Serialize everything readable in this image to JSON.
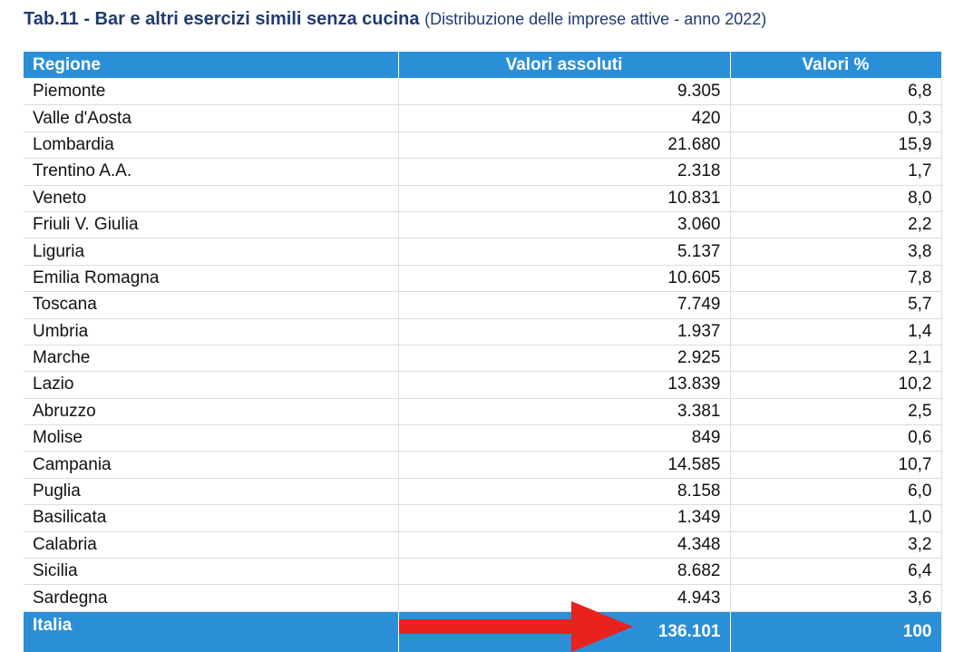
{
  "title": {
    "bold": "Tab.11 - Bar e altri esercizi simili senza cucina",
    "subtitle": "(Distribuzione delle imprese attive - anno 2022)"
  },
  "table": {
    "headers": [
      "Regione",
      "Valori assoluti",
      "Valori %"
    ],
    "rows": [
      {
        "regione": "Piemonte",
        "assoluti": "9.305",
        "percent": "6,8"
      },
      {
        "regione": "Valle d'Aosta",
        "assoluti": "420",
        "percent": "0,3"
      },
      {
        "regione": "Lombardia",
        "assoluti": "21.680",
        "percent": "15,9"
      },
      {
        "regione": "Trentino A.A.",
        "assoluti": "2.318",
        "percent": "1,7"
      },
      {
        "regione": "Veneto",
        "assoluti": "10.831",
        "percent": "8,0"
      },
      {
        "regione": "Friuli V. Giulia",
        "assoluti": "3.060",
        "percent": "2,2"
      },
      {
        "regione": "Liguria",
        "assoluti": "5.137",
        "percent": "3,8"
      },
      {
        "regione": "Emilia Romagna",
        "assoluti": "10.605",
        "percent": "7,8"
      },
      {
        "regione": "Toscana",
        "assoluti": "7.749",
        "percent": "5,7"
      },
      {
        "regione": "Umbria",
        "assoluti": "1.937",
        "percent": "1,4"
      },
      {
        "regione": "Marche",
        "assoluti": "2.925",
        "percent": "2,1"
      },
      {
        "regione": "Lazio",
        "assoluti": "13.839",
        "percent": "10,2"
      },
      {
        "regione": "Abruzzo",
        "assoluti": "3.381",
        "percent": "2,5"
      },
      {
        "regione": "Molise",
        "assoluti": "849",
        "percent": "0,6"
      },
      {
        "regione": "Campania",
        "assoluti": "14.585",
        "percent": "10,7"
      },
      {
        "regione": "Puglia",
        "assoluti": "8.158",
        "percent": "6,0"
      },
      {
        "regione": "Basilicata",
        "assoluti": "1.349",
        "percent": "1,0"
      },
      {
        "regione": "Calabria",
        "assoluti": "4.348",
        "percent": "3,2"
      },
      {
        "regione": "Sicilia",
        "assoluti": "8.682",
        "percent": "6,4"
      },
      {
        "regione": "Sardegna",
        "assoluti": "4.943",
        "percent": "3,6"
      }
    ],
    "total": {
      "regione": "Italia",
      "assoluti": "136.101",
      "percent": "100"
    }
  },
  "colors": {
    "header_bg": "#2b8fd8",
    "title": "#1f3b73",
    "arrow": "#e8221c"
  },
  "icons": {
    "arrow": "right-arrow-icon"
  }
}
